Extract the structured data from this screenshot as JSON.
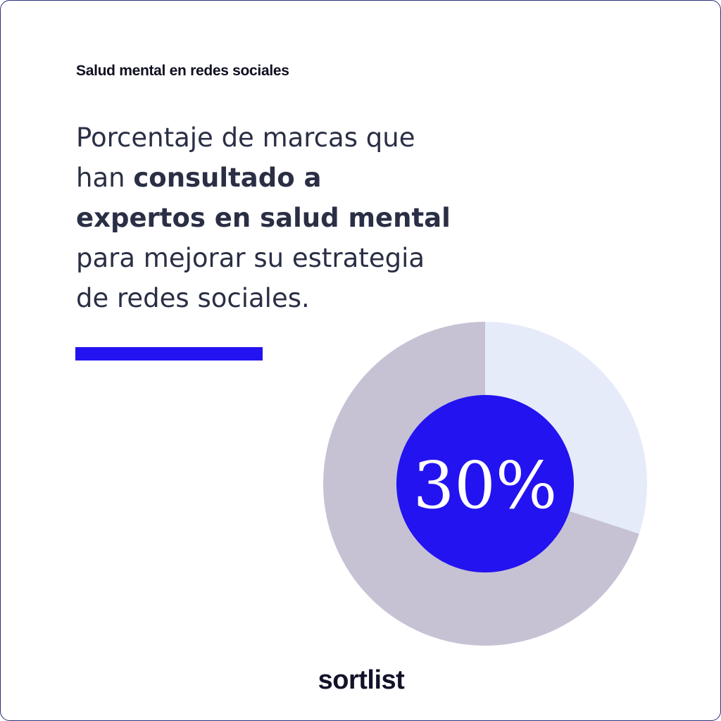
{
  "kicker": "Salud mental en redes sociales",
  "headline": {
    "line1": "Porcentaje de marcas que",
    "line2_light": "han ",
    "line2_strong": "consultado a",
    "line3_strong": "expertos en salud mental",
    "line4": "para mejorar su estrategia",
    "line5": "de redes sociales."
  },
  "brand": "sortlist",
  "colors": {
    "accent": "#2313f0",
    "highlight_slice": "#e6ebfa",
    "rest_slice": "#c6c2d4",
    "text": "#2a2f45"
  },
  "chart_data": {
    "type": "pie",
    "slices": [
      {
        "value": 30,
        "color": "#e6ebfa"
      },
      {
        "value": 70,
        "color": "#c6c2d4"
      }
    ],
    "center_label": "30%",
    "center_color": "#2313f0"
  }
}
